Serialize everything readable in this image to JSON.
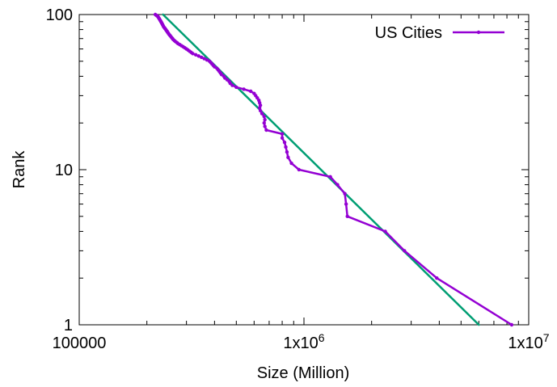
{
  "chart_data": {
    "type": "scatter",
    "title": "",
    "xlabel": "Size (Million)",
    "ylabel": "Rank",
    "xscale": "log",
    "yscale": "log",
    "xlim": [
      100000,
      10000000
    ],
    "ylim": [
      1,
      100
    ],
    "grid": false,
    "legend_position": "top-right",
    "x_ticks": [
      {
        "value": 100000,
        "label": "100000"
      },
      {
        "value": 1000000,
        "label": "1x10",
        "exp": "6"
      },
      {
        "value": 10000000,
        "label": "1x10",
        "exp": "7"
      }
    ],
    "y_ticks": [
      {
        "value": 1,
        "label": "1"
      },
      {
        "value": 10,
        "label": "10"
      },
      {
        "value": 100,
        "label": "100"
      }
    ],
    "series": [
      {
        "name": "US Cities",
        "color": "#9400d3",
        "style": "linespoints",
        "points": [
          [
            8400000,
            1
          ],
          [
            3900000,
            2
          ],
          [
            2800000,
            3
          ],
          [
            2300000,
            4
          ],
          [
            1560000,
            5
          ],
          [
            1540000,
            6
          ],
          [
            1520000,
            7
          ],
          [
            1410000,
            8
          ],
          [
            1310000,
            9
          ],
          [
            950000,
            10
          ],
          [
            880000,
            11
          ],
          [
            850000,
            12
          ],
          [
            840000,
            13
          ],
          [
            830000,
            14
          ],
          [
            820000,
            15
          ],
          [
            800000,
            16
          ],
          [
            800000,
            17
          ],
          [
            680000,
            18
          ],
          [
            670000,
            19
          ],
          [
            665000,
            20
          ],
          [
            670000,
            21
          ],
          [
            665000,
            22
          ],
          [
            650000,
            23
          ],
          [
            640000,
            24
          ],
          [
            635000,
            25
          ],
          [
            640000,
            26
          ],
          [
            635000,
            27
          ],
          [
            630000,
            28
          ],
          [
            620000,
            29
          ],
          [
            610000,
            30
          ],
          [
            600000,
            31
          ],
          [
            580000,
            32
          ],
          [
            540000,
            33
          ],
          [
            500000,
            34
          ],
          [
            480000,
            35
          ],
          [
            470000,
            36
          ],
          [
            465000,
            37
          ],
          [
            455000,
            38
          ],
          [
            445000,
            39
          ],
          [
            440000,
            40
          ],
          [
            430000,
            41
          ],
          [
            425000,
            42
          ],
          [
            420000,
            43
          ],
          [
            415000,
            44
          ],
          [
            410000,
            45
          ],
          [
            400000,
            46
          ],
          [
            395000,
            47
          ],
          [
            390000,
            48
          ],
          [
            385000,
            49
          ],
          [
            380000,
            50
          ],
          [
            370000,
            51
          ],
          [
            360000,
            52
          ],
          [
            350000,
            53
          ],
          [
            340000,
            54
          ],
          [
            330000,
            55
          ],
          [
            320000,
            56
          ],
          [
            315000,
            57
          ],
          [
            310000,
            58
          ],
          [
            305000,
            59
          ],
          [
            300000,
            60
          ],
          [
            295000,
            61
          ],
          [
            290000,
            62
          ],
          [
            285000,
            63
          ],
          [
            280000,
            64
          ],
          [
            275000,
            65
          ],
          [
            272000,
            66
          ],
          [
            268000,
            67
          ],
          [
            265000,
            68
          ],
          [
            262000,
            69
          ],
          [
            260000,
            70
          ],
          [
            258000,
            71
          ],
          [
            256000,
            72
          ],
          [
            254000,
            73
          ],
          [
            252000,
            74
          ],
          [
            250000,
            75
          ],
          [
            249000,
            76
          ],
          [
            247000,
            77
          ],
          [
            246000,
            78
          ],
          [
            244000,
            79
          ],
          [
            243000,
            80
          ],
          [
            241000,
            81
          ],
          [
            240000,
            82
          ],
          [
            238000,
            83
          ],
          [
            237000,
            84
          ],
          [
            236000,
            85
          ],
          [
            235000,
            86
          ],
          [
            234000,
            87
          ],
          [
            233000,
            88
          ],
          [
            232000,
            89
          ],
          [
            231000,
            90
          ],
          [
            230000,
            91
          ],
          [
            229000,
            92
          ],
          [
            228000,
            93
          ],
          [
            227000,
            94
          ],
          [
            226000,
            95
          ],
          [
            225000,
            96
          ],
          [
            224000,
            97
          ],
          [
            222000,
            98
          ],
          [
            220000,
            99
          ],
          [
            218000,
            100
          ]
        ]
      },
      {
        "color": "#009e73",
        "style": "line",
        "points": [
          [
            236000,
            100
          ],
          [
            6000000,
            1
          ]
        ]
      }
    ]
  }
}
